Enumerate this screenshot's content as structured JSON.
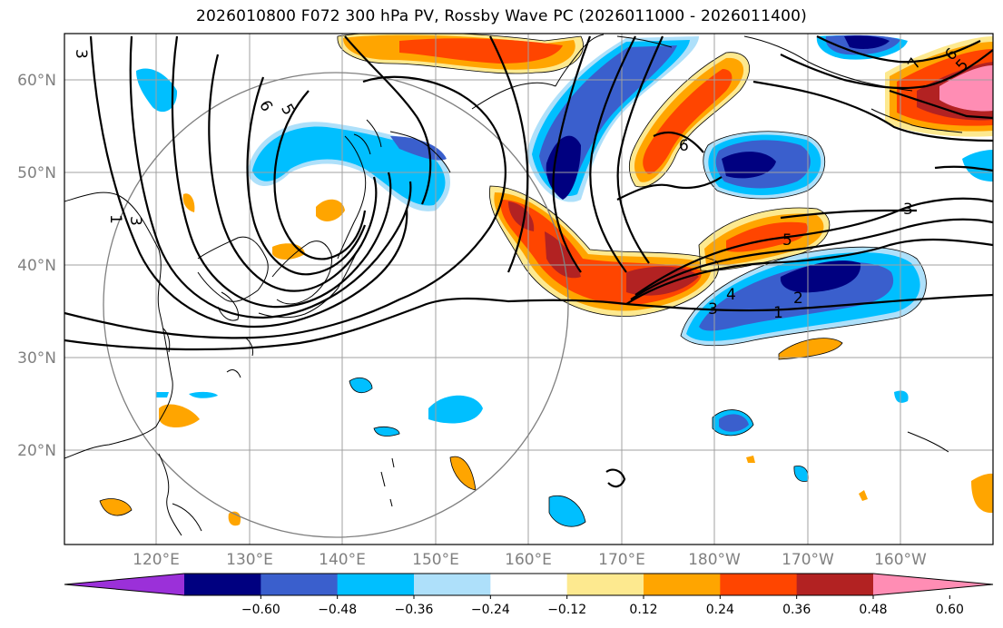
{
  "title": "2026010800 F072 300 hPa PV, Rossby Wave PC (2026011000 - 2026011400)",
  "lon_labels": [
    "120°E",
    "130°E",
    "140°E",
    "150°E",
    "160°E",
    "170°E",
    "180°W",
    "170°W",
    "160°W"
  ],
  "lat_labels": [
    "60°N",
    "50°N",
    "40°N",
    "30°N",
    "20°N"
  ],
  "colorbar": {
    "colors": [
      "#9b30d9",
      "#000080",
      "#3a5fcd",
      "#00bfff",
      "#aee0fa",
      "#ffffff",
      "#fde98f",
      "#ffa500",
      "#ff4500",
      "#b22222",
      "#ff8db4"
    ],
    "tick_labels": [
      "−0.60",
      "−0.48",
      "−0.36",
      "−0.24",
      "−0.12",
      "0.12",
      "0.24",
      "0.36",
      "0.48",
      "0.60"
    ]
  },
  "contour_labels": [
    "3",
    "1",
    "6",
    "5",
    "4",
    "2",
    "1",
    "3",
    "4",
    "5",
    "3",
    "6",
    "7",
    "6",
    "5",
    "1",
    "3"
  ],
  "map_style": {
    "grid_color": "#a0a0a0",
    "coast_color": "#000000",
    "circle_color": "#808080"
  }
}
